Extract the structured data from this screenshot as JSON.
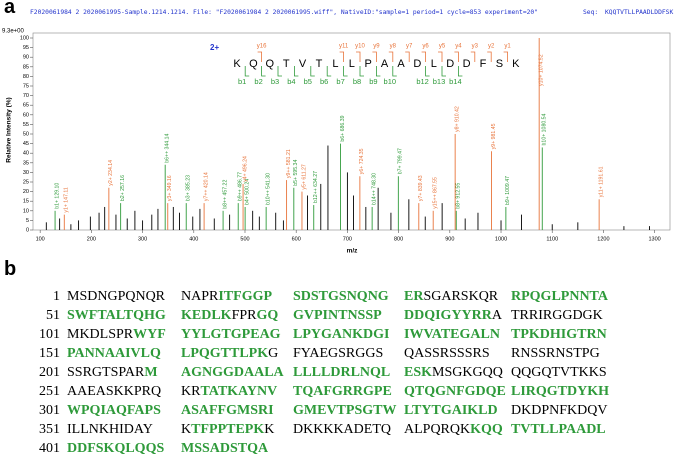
{
  "panel_labels": [
    "a",
    "b"
  ],
  "chart_data": {
    "type": "stem",
    "subtitle": "F2020061984 2 2020061995-Sample.1214.1214. File: \"F2020061984 2 2020061995.wiff\", NativeID:\"sample=1 period=1 cycle=853 experiment=20\"",
    "seq_label": "Seq:",
    "seq": "KQQTVTLLPAADLDDFSK",
    "max_intensity": "9.3e+00",
    "ylabel": "Relative Intensity (%)",
    "xlabel": "m/z",
    "xlim": [
      86,
      1330
    ],
    "ylim": [
      0,
      100
    ],
    "xticks": [
      100,
      200,
      300,
      400,
      500,
      600,
      700,
      800,
      900,
      1000,
      1100,
      1200,
      1300
    ],
    "yticks": [
      0,
      5,
      10,
      15,
      20,
      25,
      30,
      35,
      40,
      45,
      50,
      55,
      60,
      65,
      70,
      75,
      80,
      85,
      90,
      95,
      100
    ],
    "annotation": {
      "charge": "2+",
      "residues": [
        "K",
        "Q",
        "Q",
        "T",
        "V",
        "T",
        "L",
        "L",
        "P",
        "A",
        "A",
        "D",
        "L",
        "D",
        "D",
        "F",
        "S",
        "K"
      ],
      "y_ions": [
        "y16",
        "y11",
        "y10",
        "y9",
        "y8",
        "y7",
        "y6",
        "y5",
        "y4",
        "y3",
        "y2",
        "y1"
      ],
      "b_ions": [
        "b1",
        "b2",
        "b3",
        "b4",
        "b5",
        "b6",
        "b7",
        "b8",
        "b9",
        "b10",
        "b12",
        "b13",
        "b14"
      ],
      "y_color": "#e8743b",
      "b_color": "#2e9a3a"
    },
    "series": [
      {
        "color": "#2e9a3a",
        "x": [
          129.1,
          257.16,
          344.14,
          385.23,
          457.22,
          486.77,
          500.24,
          541.3,
          595.34,
          634.27,
          686.39,
          748.3,
          799.47,
          912.55,
          1009.47,
          1080.54
        ],
        "values": [
          10,
          14,
          34,
          14,
          10,
          14,
          12,
          12,
          22,
          13,
          45,
          12,
          28,
          10,
          12,
          43
        ],
        "x_labels": [
          "b1+ 129.10",
          "b2+ 257.16",
          "b6++ 344.14",
          "b3+ 385.23",
          "b8++ 457.22",
          "b9++ 486.77",
          "b4+ 500.24",
          "b10++ 541.30",
          "b5+ 595.34",
          "b12++ 634.27",
          "b6+ 686.39",
          "b14++ 748.30",
          "b7+ 799.47",
          "b8+ 912.55",
          "b9+ 1009.47",
          "b10+ 1080.54"
        ]
      },
      {
        "color": "#e8743b",
        "x": [
          147.11,
          234.14,
          349.16,
          420.14,
          496.24,
          581.21,
          611.27,
          724.35,
          839.43,
          867.55,
          910.42,
          981.45,
          1074.52,
          1191.61
        ],
        "values": [
          8,
          22,
          14,
          14,
          24,
          26,
          20,
          28,
          14,
          10,
          50,
          41,
          100,
          16
        ],
        "x_labels": [
          "y1+ 147.11",
          "y2+ 234.14",
          "y3+ 349.16",
          "y7++ 420.14",
          "y4+ 496.24",
          "y9++ 581.21",
          "y5+ 611.27",
          "y6+ 724.35",
          "y7+ 839.43",
          "y15++ 867.55",
          "y8+ 910.42",
          "y9+ 981.45",
          "y10+ 1074.52",
          "y11+ 1191.61"
        ]
      },
      {
        "color": "#000000",
        "x": [
          112,
          138,
          160,
          175,
          198,
          215,
          226,
          248,
          270,
          285,
          300,
          318,
          330,
          360,
          372,
          398,
          412,
          440,
          470,
          515,
          528,
          560,
          575,
          622,
          648,
          662,
          700,
          712,
          736,
          760,
          785,
          820,
          852,
          885,
          930,
          955,
          1000,
          1040,
          1100,
          1150,
          1240,
          1290
        ],
        "values": [
          4,
          6,
          3,
          5,
          7,
          9,
          12,
          8,
          6,
          10,
          5,
          8,
          11,
          12,
          9,
          7,
          11,
          6,
          8,
          10,
          7,
          9,
          5,
          18,
          24,
          44,
          30,
          18,
          12,
          22,
          9,
          16,
          7,
          14,
          6,
          9,
          5,
          8,
          3,
          4,
          2,
          2
        ]
      }
    ]
  },
  "sequence_panel": {
    "lines": [
      {
        "number": "1",
        "groups": [
          [
            {
              "text": "MSDNGPQNQR",
              "covered": false
            }
          ],
          [
            {
              "text": "NAPR",
              "covered": false
            },
            {
              "text": "ITFGGP",
              "covered": true
            }
          ],
          [
            {
              "text": "SDSTGSNQNG",
              "covered": true
            }
          ],
          [
            {
              "text": "ER",
              "covered": true
            },
            {
              "text": "SGARSKQR",
              "covered": false
            }
          ],
          [
            {
              "text": "RPQGLPNNTA",
              "covered": true
            }
          ]
        ]
      },
      {
        "number": "51",
        "groups": [
          [
            {
              "text": "SWFTALTQHG",
              "covered": true
            }
          ],
          [
            {
              "text": "KEDLK",
              "covered": true
            },
            {
              "text": "FPR",
              "covered": false
            },
            {
              "text": "GQ",
              "covered": true
            }
          ],
          [
            {
              "text": "GVPINTNSSP",
              "covered": true
            }
          ],
          [
            {
              "text": "DDQIGYYRR",
              "covered": true
            },
            {
              "text": "A",
              "covered": false
            }
          ],
          [
            {
              "text": "TRRIRGGDGK",
              "covered": false
            }
          ]
        ]
      },
      {
        "number": "101",
        "groups": [
          [
            {
              "text": "MKDLSPR",
              "covered": false
            },
            {
              "text": "WYF",
              "covered": true
            }
          ],
          [
            {
              "text": "YYLGTGPEAG",
              "covered": true
            }
          ],
          [
            {
              "text": "LPYGANKDGI",
              "covered": true
            }
          ],
          [
            {
              "text": "IWVATEGALN",
              "covered": true
            }
          ],
          [
            {
              "text": "TPKDHIGTRN",
              "covered": true
            }
          ]
        ]
      },
      {
        "number": "151",
        "groups": [
          [
            {
              "text": "PANNAAIVLQ",
              "covered": true
            }
          ],
          [
            {
              "text": "LPQGTTLPK",
              "covered": true
            },
            {
              "text": "G",
              "covered": false
            }
          ],
          [
            {
              "text": "FYAEGSRGGS",
              "covered": false
            }
          ],
          [
            {
              "text": "QASSRSSSRS",
              "covered": false
            }
          ],
          [
            {
              "text": "RNSSRNSTPG",
              "covered": false
            }
          ]
        ]
      },
      {
        "number": "201",
        "groups": [
          [
            {
              "text": "SSRGTSPAR",
              "covered": false
            },
            {
              "text": "M",
              "covered": true
            }
          ],
          [
            {
              "text": "AGNGGDAALA",
              "covered": true
            }
          ],
          [
            {
              "text": "LLLLDRLNQL",
              "covered": true
            }
          ],
          [
            {
              "text": "ESK",
              "covered": true
            },
            {
              "text": "MSGKGQQ",
              "covered": false
            }
          ],
          [
            {
              "text": "QQGQTVTKKS",
              "covered": false
            }
          ]
        ]
      },
      {
        "number": "251",
        "groups": [
          [
            {
              "text": "AAEASKKPRQ",
              "covered": false
            }
          ],
          [
            {
              "text": "KR",
              "covered": false
            },
            {
              "text": "TATKAYNV",
              "covered": true
            }
          ],
          [
            {
              "text": "TQAFGRRGPE",
              "covered": true
            }
          ],
          [
            {
              "text": "QTQGNFGDQE",
              "covered": true
            }
          ],
          [
            {
              "text": "LIRQGTDYKH",
              "covered": true
            }
          ]
        ]
      },
      {
        "number": "301",
        "groups": [
          [
            {
              "text": "WPQIAQFAPS",
              "covered": true
            }
          ],
          [
            {
              "text": "ASAFFGMSRI",
              "covered": true
            }
          ],
          [
            {
              "text": "GMEVTPSGTW",
              "covered": true
            }
          ],
          [
            {
              "text": "LTYTGAIKLD",
              "covered": true
            }
          ],
          [
            {
              "text": "DKDPNFKDQV",
              "covered": false
            }
          ]
        ]
      },
      {
        "number": "351",
        "groups": [
          [
            {
              "text": "ILLNKHIDAY",
              "covered": false
            }
          ],
          [
            {
              "text": "K",
              "covered": false
            },
            {
              "text": "TFPPTEPK",
              "covered": true
            },
            {
              "text": "K",
              "covered": false
            }
          ],
          [
            {
              "text": "DKKKKADETQ",
              "covered": false
            }
          ],
          [
            {
              "text": "ALPQRQK",
              "covered": false
            },
            {
              "text": "KQQ",
              "covered": true
            }
          ],
          [
            {
              "text": "TVTLLPAADL",
              "covered": true
            }
          ]
        ]
      },
      {
        "number": "401",
        "groups": [
          [
            {
              "text": "DDFSKQLQQS",
              "covered": true
            }
          ],
          [
            {
              "text": "MSSADSTQA",
              "covered": true
            }
          ]
        ]
      }
    ],
    "covered_color": "#2e9a3a"
  }
}
